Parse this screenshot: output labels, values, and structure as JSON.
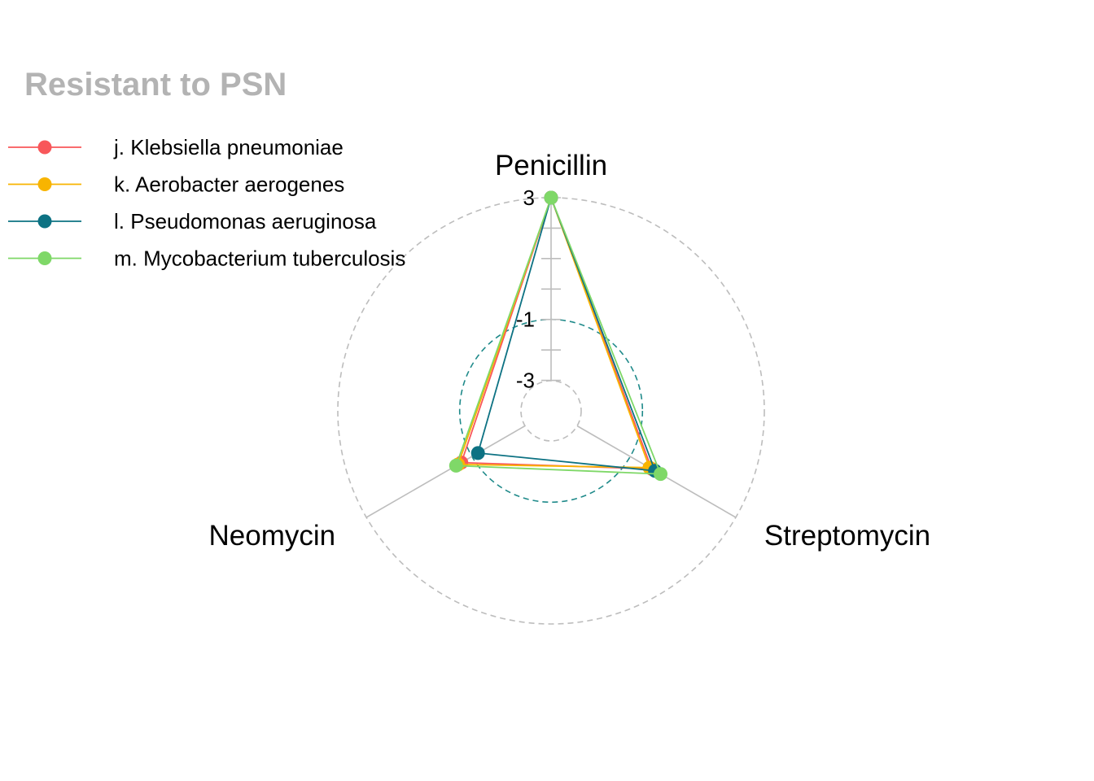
{
  "chart_data": {
    "type": "radar",
    "title": "Resistant to PSN",
    "axes": [
      "Penicillin",
      "Streptomycin",
      "Neomycin"
    ],
    "rlim": [
      -4,
      3
    ],
    "ticks": [
      3,
      -1,
      -3
    ],
    "grid_levels": [
      {
        "value": 3,
        "color": "#BDBDBD"
      },
      {
        "value": -1,
        "color": "#1F8A8A"
      },
      {
        "value": -4,
        "color": "#BDBDBD"
      }
    ],
    "legend_position": "top-left",
    "series": [
      {
        "name": "j. Klebsiella pneumoniae",
        "color": "#F8575A",
        "values": [
          3.0,
          -0.19,
          -0.6
        ]
      },
      {
        "name": "k. Aerobacter aerogenes",
        "color": "#F8B400",
        "values": [
          3.0,
          -0.27,
          -0.48
        ]
      },
      {
        "name": "l. Pseudomonas aeruginosa",
        "color": "#0D7283",
        "values": [
          3.0,
          -0.06,
          -1.23
        ]
      },
      {
        "name": "m. Mycobacterium tuberculosis",
        "color": "#7FD868",
        "values": [
          3.0,
          0.15,
          -0.4
        ]
      }
    ]
  }
}
